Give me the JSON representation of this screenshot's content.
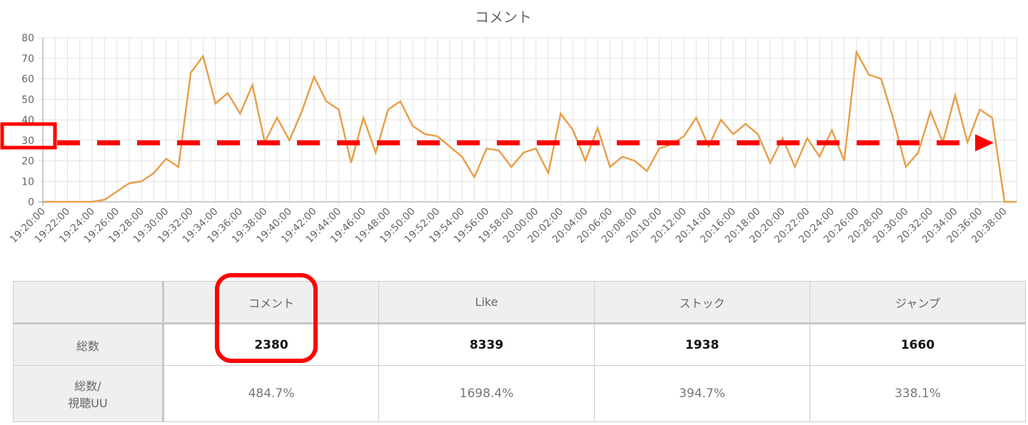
{
  "chart_data": {
    "type": "line",
    "title": "コメント",
    "x": [
      "19:20:00",
      "19:21:00",
      "19:22:00",
      "19:23:00",
      "19:24:00",
      "19:25:00",
      "19:26:00",
      "19:27:00",
      "19:28:00",
      "19:29:00",
      "19:30:00",
      "19:31:00",
      "19:32:00",
      "19:33:00",
      "19:34:00",
      "19:35:00",
      "19:36:00",
      "19:37:00",
      "19:38:00",
      "19:39:00",
      "19:40:00",
      "19:41:00",
      "19:42:00",
      "19:43:00",
      "19:44:00",
      "19:45:00",
      "19:46:00",
      "19:47:00",
      "19:48:00",
      "19:49:00",
      "19:50:00",
      "19:51:00",
      "19:52:00",
      "19:53:00",
      "19:54:00",
      "19:55:00",
      "19:56:00",
      "19:57:00",
      "19:58:00",
      "19:59:00",
      "20:00:00",
      "20:01:00",
      "20:02:00",
      "20:03:00",
      "20:04:00",
      "20:05:00",
      "20:06:00",
      "20:07:00",
      "20:08:00",
      "20:09:00",
      "20:10:00",
      "20:11:00",
      "20:12:00",
      "20:13:00",
      "20:14:00",
      "20:15:00",
      "20:16:00",
      "20:17:00",
      "20:18:00",
      "20:19:00",
      "20:20:00",
      "20:21:00",
      "20:22:00",
      "20:23:00",
      "20:24:00",
      "20:25:00",
      "20:26:00",
      "20:27:00",
      "20:28:00",
      "20:29:00",
      "20:30:00",
      "20:31:00",
      "20:32:00",
      "20:33:00",
      "20:34:00",
      "20:35:00",
      "20:36:00",
      "20:37:00",
      "20:38:00",
      "20:39:00"
    ],
    "values": [
      0,
      0,
      0,
      0,
      0,
      1,
      5,
      9,
      10,
      14,
      21,
      17,
      63,
      71,
      48,
      53,
      43,
      57,
      29,
      41,
      30,
      44,
      61,
      49,
      45,
      19,
      41,
      24,
      45,
      49,
      37,
      33,
      32,
      27,
      22,
      12,
      26,
      25,
      17,
      24,
      26,
      14,
      43,
      35,
      20,
      36,
      17,
      22,
      20,
      15,
      26,
      28,
      32,
      41,
      27,
      40,
      33,
      38,
      33,
      19,
      31,
      17,
      31,
      22,
      35,
      20,
      73,
      62,
      60,
      40,
      17,
      24,
      44,
      29,
      52,
      29,
      45,
      41,
      0,
      0
    ],
    "x_tick_labels": [
      "19:20:00",
      "19:22:00",
      "19:24:00",
      "19:26:00",
      "19:28:00",
      "19:30:00",
      "19:32:00",
      "19:34:00",
      "19:36:00",
      "19:38:00",
      "19:40:00",
      "19:42:00",
      "19:44:00",
      "19:46:00",
      "19:48:00",
      "19:50:00",
      "19:52:00",
      "19:54:00",
      "19:56:00",
      "19:58:00",
      "20:00:00",
      "20:02:00",
      "20:04:00",
      "20:06:00",
      "20:08:00",
      "20:10:00",
      "20:12:00",
      "20:14:00",
      "20:16:00",
      "20:18:00",
      "20:20:00",
      "20:22:00",
      "20:24:00",
      "20:26:00",
      "20:28:00",
      "20:30:00",
      "20:32:00",
      "20:34:00",
      "20:36:00",
      "20:38:00"
    ],
    "y_ticks": [
      0,
      10,
      20,
      30,
      40,
      50,
      60,
      70,
      80
    ],
    "ylim": [
      0,
      80
    ],
    "grid": true,
    "line_color": "#e8a04a",
    "annotation": {
      "reference_value": 30,
      "color": "#ff0000"
    }
  },
  "table": {
    "headers": [
      "",
      "コメント",
      "Like",
      "ストック",
      "ジャンプ"
    ],
    "rows": [
      {
        "label": "総数",
        "values": [
          "2380",
          "8339",
          "1938",
          "1660"
        ]
      },
      {
        "label_line1": "総数/",
        "label_line2": "視聴UU",
        "values": [
          "484.7%",
          "1698.4%",
          "394.7%",
          "338.1%"
        ]
      }
    ]
  }
}
